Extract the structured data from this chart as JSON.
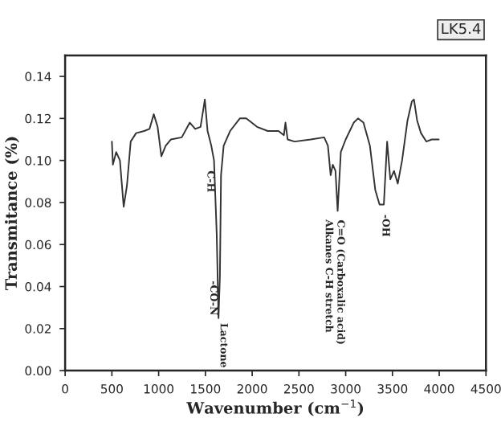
{
  "chart_data": {
    "type": "line",
    "xlabel": "Wavenumber (cm$^{−1}$)",
    "ylabel": "Transmitance (%)",
    "x": [
      500,
      511,
      546,
      586,
      626,
      661,
      701,
      759,
      845,
      902,
      948,
      989,
      1029,
      1075,
      1132,
      1247,
      1333,
      1391,
      1448,
      1494,
      1523,
      1563,
      1592,
      1621,
      1640,
      1655,
      1667,
      1695,
      1764,
      1868,
      1937,
      2052,
      2167,
      2282,
      2339,
      2356,
      2379,
      2454,
      2626,
      2770,
      2810,
      2839,
      2862,
      2891,
      2914,
      2948,
      3000,
      3086,
      3132,
      3190,
      3259,
      3316,
      3362,
      3408,
      3443,
      3477,
      3517,
      3557,
      3603,
      3661,
      3707,
      3730,
      3764,
      3805,
      3862,
      3920,
      3995
    ],
    "series": [
      {
        "color": "#333333",
        "values": [
          0.109,
          0.098,
          0.104,
          0.1,
          0.078,
          0.088,
          0.109,
          0.113,
          0.114,
          0.115,
          0.122,
          0.116,
          0.102,
          0.107,
          0.11,
          0.111,
          0.118,
          0.115,
          0.116,
          0.129,
          0.114,
          0.107,
          0.1,
          0.065,
          0.025,
          0.045,
          0.093,
          0.107,
          0.114,
          0.12,
          0.12,
          0.116,
          0.114,
          0.114,
          0.112,
          0.118,
          0.11,
          0.109,
          0.11,
          0.111,
          0.107,
          0.093,
          0.098,
          0.095,
          0.076,
          0.104,
          0.11,
          0.118,
          0.12,
          0.118,
          0.107,
          0.086,
          0.079,
          0.079,
          0.109,
          0.091,
          0.095,
          0.089,
          0.1,
          0.119,
          0.128,
          0.129,
          0.119,
          0.113,
          0.109,
          0.11,
          0.11
        ]
      }
    ],
    "xlim": [
      0,
      4500
    ],
    "xticks": [
      0,
      500,
      1000,
      1500,
      2000,
      2500,
      3000,
      3500,
      4000,
      4500
    ],
    "ylim": [
      0,
      0.15
    ],
    "yticks": [
      {
        "value": 0,
        "label": "0.00"
      },
      {
        "value": 0.02,
        "label": "0.02"
      },
      {
        "value": 0.04,
        "label": "0.04"
      },
      {
        "value": 0.06,
        "label": "0.06"
      },
      {
        "value": 0.08,
        "label": "0.08"
      },
      {
        "value": 0.1,
        "label": "0.10"
      },
      {
        "value": 0.12,
        "label": "0.12"
      },
      {
        "value": 0.14,
        "label": "0.14"
      }
    ],
    "grid": false,
    "marker": "none",
    "line_style": "solid",
    "annotations": [
      "LK5.4",
      "C-H",
      "-CO-N",
      "Lactone",
      "Alkanes C-H stretch",
      "C=O (Carboxalic acid)",
      "-OH"
    ]
  }
}
